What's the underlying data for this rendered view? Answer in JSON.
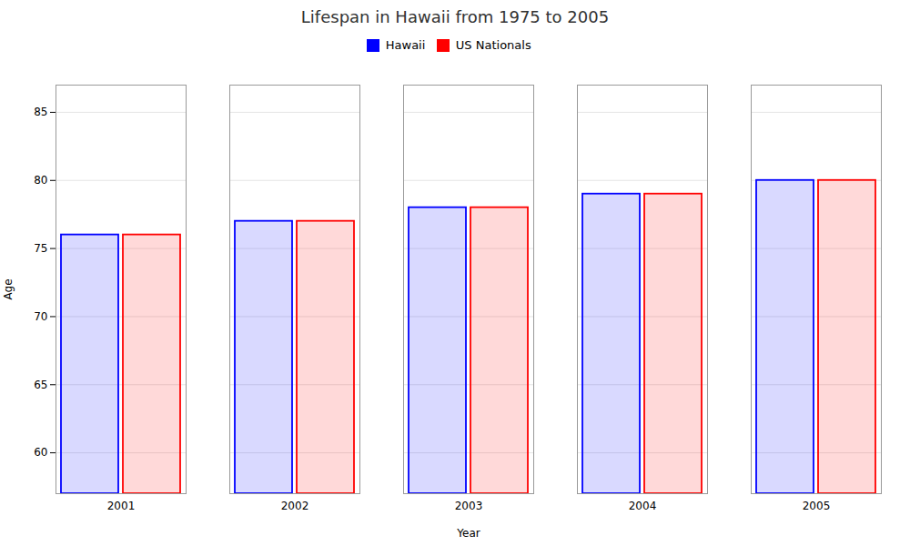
{
  "chart_data": {
    "type": "bar",
    "title": "Lifespan in Hawaii from 1975 to 2005",
    "xlabel": "Year",
    "ylabel": "Age",
    "categories": [
      "2001",
      "2002",
      "2003",
      "2004",
      "2005"
    ],
    "series": [
      {
        "name": "Hawaii",
        "color": "#0000ff",
        "values": [
          76,
          77,
          78,
          79,
          80
        ]
      },
      {
        "name": "US Nationals",
        "color": "#ff0000",
        "values": [
          76,
          77,
          78,
          79,
          80
        ]
      }
    ],
    "ylim": [
      57,
      87
    ],
    "yticks": [
      60,
      65,
      70,
      75,
      80,
      85
    ],
    "grid": true,
    "legend": "top"
  }
}
